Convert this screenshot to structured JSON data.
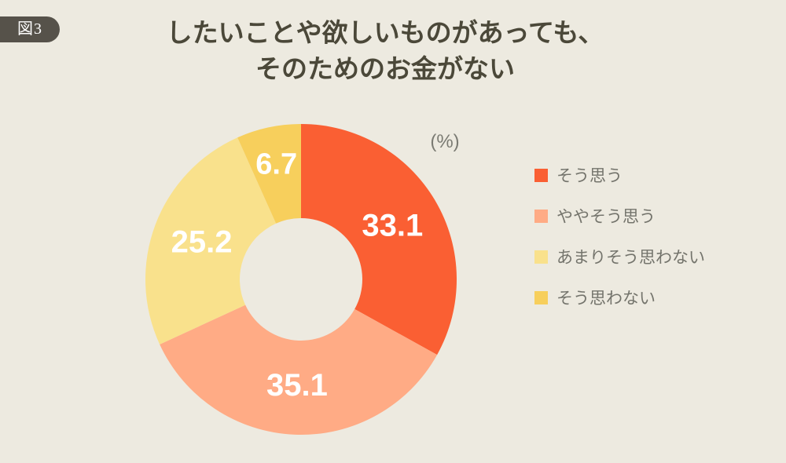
{
  "figure_label": "図3",
  "title": {
    "line1": "したいことや欲しいものがあっても、",
    "line2": "そのためのお金がない"
  },
  "unit_label": "(%)",
  "colors": {
    "background": "#EDEAE0",
    "badge": "#56524A",
    "title_text": "#4B4839",
    "legend_text": "#74746C",
    "unit_text": "#7B7B73",
    "value_label_text": "#FFFFFF"
  },
  "chart_data": {
    "type": "pie",
    "subtype": "donut",
    "title": "したいことや欲しいものがあっても、そのためのお金がない",
    "unit": "%",
    "start_angle_deg": 0,
    "direction": "clockwise",
    "legend_position": "right",
    "segments": [
      {
        "label": "そう思う",
        "value": 33.1,
        "value_text": "33.1",
        "color": "#FA5F33"
      },
      {
        "label": "ややそう思う",
        "value": 35.1,
        "value_text": "35.1",
        "color": "#FFAB85"
      },
      {
        "label": "あまりそう思わない",
        "value": 25.2,
        "value_text": "25.2",
        "color": "#F9E18C"
      },
      {
        "label": "そう思わない",
        "value": 6.7,
        "value_text": "6.7",
        "color": "#F7CF5C"
      }
    ]
  }
}
